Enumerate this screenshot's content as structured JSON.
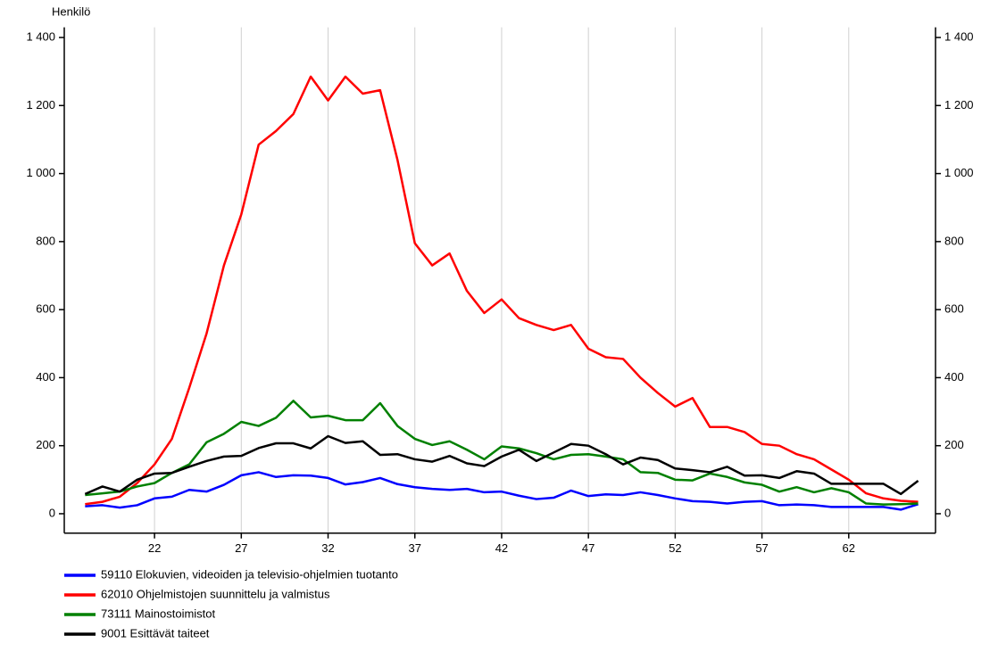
{
  "chart_data": {
    "type": "line",
    "y_axis_label": "Henkilö",
    "x": [
      18,
      19,
      20,
      21,
      22,
      23,
      24,
      25,
      26,
      27,
      28,
      29,
      30,
      31,
      32,
      33,
      34,
      35,
      36,
      37,
      38,
      39,
      40,
      41,
      42,
      43,
      44,
      45,
      46,
      47,
      48,
      49,
      50,
      51,
      52,
      53,
      54,
      55,
      56,
      57,
      58,
      59,
      60,
      61,
      62,
      63,
      64,
      65,
      66
    ],
    "xlim": [
      16.8,
      67
    ],
    "xticks": [
      22,
      27,
      32,
      37,
      42,
      47,
      52,
      57,
      62
    ],
    "ylim": [
      -57,
      1430
    ],
    "yticks": [
      0,
      200,
      400,
      600,
      800,
      {
        "value": 1000,
        "label": "1 000"
      },
      {
        "value": 1200,
        "label": "1 200"
      },
      {
        "value": 1400,
        "label": "1 400"
      }
    ],
    "grid": true,
    "series": [
      {
        "name": "59110 Elokuvien, videoiden ja televisio-ohjelmien tuotanto",
        "color": "#0000ff",
        "values": [
          22,
          25,
          18,
          25,
          45,
          50,
          70,
          65,
          85,
          113,
          122,
          108,
          113,
          112,
          105,
          86,
          93,
          105,
          87,
          78,
          73,
          70,
          73,
          63,
          65,
          53,
          43,
          47,
          68,
          52,
          57,
          55,
          63,
          55,
          45,
          37,
          35,
          30,
          35,
          37,
          25,
          27,
          25,
          20,
          20,
          20,
          20,
          12,
          28
        ]
      },
      {
        "name": "62010 Ohjelmistojen suunnittelu ja valmistus",
        "color": "#ff0000",
        "values": [
          28,
          35,
          50,
          90,
          145,
          220,
          370,
          530,
          730,
          880,
          1085,
          1125,
          1175,
          1285,
          1215,
          1285,
          1235,
          1245,
          1040,
          795,
          730,
          765,
          655,
          590,
          630,
          575,
          555,
          540,
          555,
          485,
          460,
          455,
          400,
          355,
          315,
          340,
          255,
          255,
          240,
          205,
          200,
          175,
          160,
          130,
          100,
          60,
          45,
          38,
          35
        ]
      },
      {
        "name": "73111 Mainostoimistot",
        "color": "#008000",
        "values": [
          55,
          60,
          65,
          80,
          90,
          120,
          145,
          210,
          235,
          270,
          258,
          282,
          332,
          283,
          288,
          275,
          275,
          325,
          258,
          220,
          202,
          213,
          188,
          160,
          198,
          192,
          178,
          160,
          173,
          175,
          168,
          160,
          122,
          120,
          100,
          98,
          118,
          108,
          92,
          85,
          65,
          78,
          63,
          75,
          63,
          30,
          27,
          28,
          30
        ]
      },
      {
        "name": "9001 Esittävät taiteet",
        "color": "#000000",
        "values": [
          58,
          80,
          65,
          100,
          118,
          120,
          138,
          155,
          168,
          170,
          193,
          207,
          207,
          192,
          228,
          208,
          213,
          173,
          175,
          160,
          153,
          170,
          148,
          140,
          168,
          188,
          155,
          180,
          205,
          200,
          175,
          145,
          165,
          158,
          133,
          128,
          122,
          138,
          112,
          113,
          105,
          125,
          118,
          88,
          88,
          88,
          88,
          58,
          97
        ]
      }
    ]
  }
}
